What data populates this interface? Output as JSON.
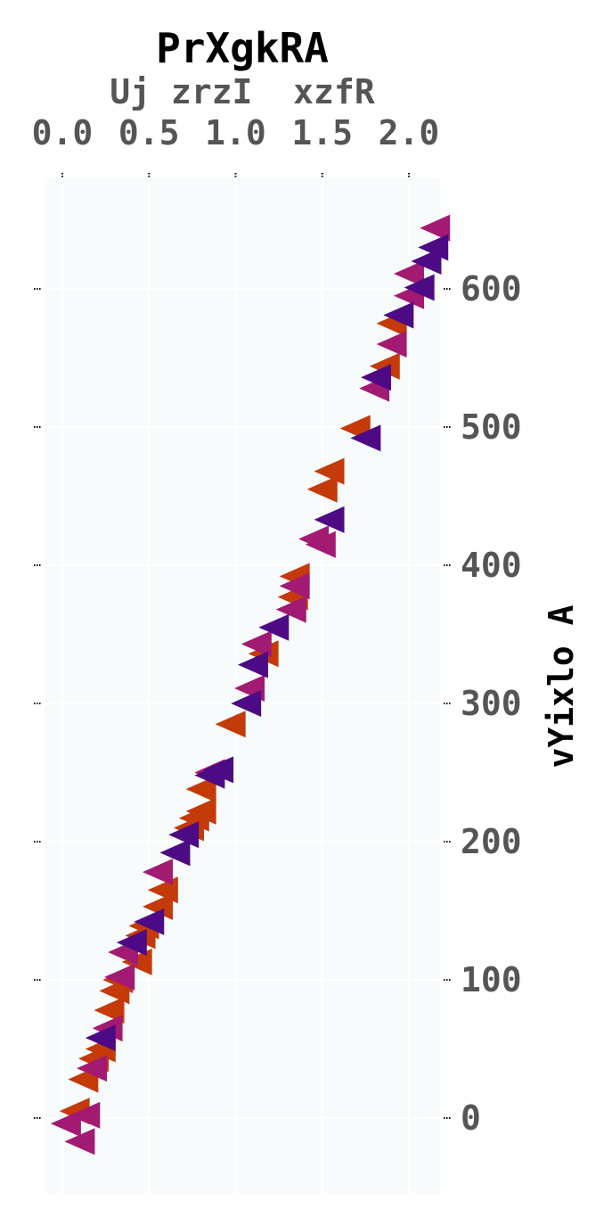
{
  "chart_data": {
    "type": "scatter",
    "title": "PrXgkRA",
    "xlabel": "Uj zrzI  xzfR",
    "ylabel": "vYixlo A",
    "x_axis_position": "top",
    "y_axis_position": "right",
    "xlim": [
      -0.1,
      2.17
    ],
    "ylim": [
      -55,
      680
    ],
    "x_ticks": [
      0.0,
      0.5,
      1.0,
      1.5,
      2.0
    ],
    "x_tick_labels": [
      "0.0",
      "0.5",
      "1.0",
      "1.5",
      "2.0"
    ],
    "y_ticks": [
      0,
      100,
      200,
      300,
      400,
      500,
      600
    ],
    "y_tick_labels": [
      "0",
      "100",
      "200",
      "300",
      "400",
      "500",
      "600"
    ],
    "grid": true,
    "marker": "triangle-left",
    "colors": {
      "background": "#f7fbfc",
      "grid": "#ffffff",
      "series_orange": "#c43a08",
      "series_magenta": "#a31a72",
      "series_purple": "#4d0a85"
    },
    "series": [
      {
        "color": "#c43a08",
        "points": [
          [
            0.07,
            5
          ],
          [
            0.12,
            28
          ],
          [
            0.18,
            43
          ],
          [
            0.22,
            50
          ],
          [
            0.27,
            78
          ],
          [
            0.3,
            92
          ],
          [
            0.32,
            100
          ],
          [
            0.43,
            113
          ],
          [
            0.45,
            132
          ],
          [
            0.47,
            139
          ],
          [
            0.55,
            153
          ],
          [
            0.58,
            165
          ],
          [
            0.73,
            210
          ],
          [
            0.76,
            217
          ],
          [
            0.8,
            222
          ],
          [
            0.8,
            238
          ],
          [
            0.97,
            285
          ],
          [
            1.16,
            336
          ],
          [
            1.33,
            377
          ],
          [
            1.34,
            392
          ],
          [
            1.5,
            455
          ],
          [
            1.54,
            468
          ],
          [
            1.69,
            499
          ],
          [
            1.86,
            544
          ],
          [
            1.9,
            575
          ]
        ]
      },
      {
        "color": "#a31a72",
        "points": [
          [
            0.02,
            -4
          ],
          [
            0.1,
            -17
          ],
          [
            0.13,
            2
          ],
          [
            0.17,
            36
          ],
          [
            0.26,
            65
          ],
          [
            0.33,
            102
          ],
          [
            0.35,
            120
          ],
          [
            0.55,
            178
          ],
          [
            0.85,
            250
          ],
          [
            1.08,
            311
          ],
          [
            1.12,
            343
          ],
          [
            1.34,
            385
          ],
          [
            1.32,
            368
          ],
          [
            1.49,
            415
          ],
          [
            1.45,
            419
          ],
          [
            1.8,
            528
          ],
          [
            1.9,
            560
          ],
          [
            2.0,
            595
          ],
          [
            2.0,
            611
          ],
          [
            2.15,
            644
          ]
        ]
      },
      {
        "color": "#4d0a85",
        "points": [
          [
            0.22,
            58
          ],
          [
            0.4,
            127
          ],
          [
            0.5,
            142
          ],
          [
            0.65,
            192
          ],
          [
            0.7,
            205
          ],
          [
            0.85,
            248
          ],
          [
            0.9,
            252
          ],
          [
            1.06,
            300
          ],
          [
            1.1,
            328
          ],
          [
            1.22,
            355
          ],
          [
            1.54,
            433
          ],
          [
            1.75,
            492
          ],
          [
            1.81,
            536
          ],
          [
            1.94,
            581
          ],
          [
            2.06,
            601
          ],
          [
            2.1,
            620
          ],
          [
            2.14,
            630
          ]
        ]
      }
    ]
  }
}
